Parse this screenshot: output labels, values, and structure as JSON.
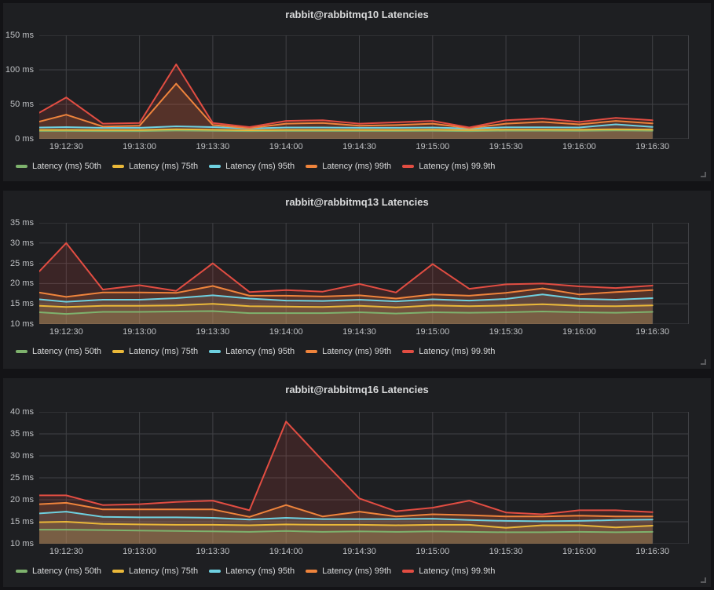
{
  "theme": {
    "page_bg": "#131316",
    "panel_bg": "#1e1f22",
    "grid_color": "#404145",
    "title_color": "#d8d9da",
    "tick_color": "#bfc1c4",
    "legend_color": "#d8d9da"
  },
  "series_palette": {
    "p50": "#7eb26d",
    "p75": "#eab839",
    "p95": "#6ed0e0",
    "p99": "#ef843c",
    "p99_9": "#e24d42"
  },
  "chart_data": [
    {
      "type": "line",
      "title": "rabbit@rabbitmq10 Latencies",
      "ylabel": "",
      "xlabel": "",
      "ylim": [
        0,
        150
      ],
      "grid": true,
      "legend_position": "bottom",
      "sample_interval": "15s",
      "note": "first point at left plot edge; labeled points every 15s from 19:12:30 to 19:16:30",
      "y_ticks": [
        {
          "value": 0,
          "label": "0 ms"
        },
        {
          "value": 50,
          "label": "50 ms"
        },
        {
          "value": 100,
          "label": "100 ms"
        },
        {
          "value": 150,
          "label": "150 ms"
        }
      ],
      "x_ticks": [
        "19:12:30",
        "19:13:00",
        "19:13:30",
        "19:14:00",
        "19:14:30",
        "19:15:00",
        "19:15:30",
        "19:16:00",
        "19:16:30"
      ],
      "series": [
        {
          "name": "Latency (ms) 50th",
          "color": "#7eb26d",
          "values": [
            11.5,
            11.5,
            11.3,
            11.3,
            12,
            11.7,
            11.2,
            11.5,
            11.5,
            11.5,
            11.5,
            11.7,
            11.2,
            11.8,
            11.8,
            11.6,
            12.2,
            11.8
          ]
        },
        {
          "name": "Latency (ms) 75th",
          "color": "#eab839",
          "values": [
            13,
            13,
            12.7,
            12.7,
            14,
            13.2,
            12.5,
            13,
            13,
            13,
            13,
            13.2,
            12.7,
            13.4,
            13.4,
            13.2,
            14,
            13.4
          ]
        },
        {
          "name": "Latency (ms) 95th",
          "color": "#6ed0e0",
          "values": [
            16.5,
            17,
            16,
            16,
            18.2,
            17,
            15,
            16.5,
            16.5,
            16,
            16,
            16.5,
            15,
            16.8,
            16.8,
            16.5,
            21,
            17.3
          ]
        },
        {
          "name": "Latency (ms) 99th",
          "color": "#ef843c",
          "values": [
            25,
            35,
            18,
            19,
            80,
            20,
            15.5,
            22,
            23,
            19,
            20,
            22,
            15.5,
            22,
            24.5,
            21,
            26,
            22.5
          ]
        },
        {
          "name": "Latency (ms) 99.9th",
          "color": "#e24d42",
          "values": [
            38,
            60,
            22,
            23,
            108,
            23,
            17,
            26,
            27,
            22,
            24,
            26,
            16.5,
            27,
            29.5,
            24.5,
            30.5,
            27
          ]
        }
      ]
    },
    {
      "type": "line",
      "title": "rabbit@rabbitmq13 Latencies",
      "ylabel": "",
      "xlabel": "",
      "ylim": [
        10,
        35
      ],
      "grid": true,
      "legend_position": "bottom",
      "sample_interval": "15s",
      "note": "first point at left plot edge; labeled points every 15s from 19:12:30 to 19:16:30",
      "y_ticks": [
        {
          "value": 10,
          "label": "10 ms"
        },
        {
          "value": 15,
          "label": "15 ms"
        },
        {
          "value": 20,
          "label": "20 ms"
        },
        {
          "value": 25,
          "label": "25 ms"
        },
        {
          "value": 30,
          "label": "30 ms"
        },
        {
          "value": 35,
          "label": "35 ms"
        }
      ],
      "x_ticks": [
        "19:12:30",
        "19:13:00",
        "19:13:30",
        "19:14:00",
        "19:14:30",
        "19:15:00",
        "19:15:30",
        "19:16:00",
        "19:16:30"
      ],
      "series": [
        {
          "name": "Latency (ms) 50th",
          "color": "#7eb26d",
          "values": [
            12.9,
            12.5,
            13,
            13,
            13.1,
            13.2,
            12.7,
            12.7,
            12.7,
            12.9,
            12.6,
            12.9,
            12.8,
            12.9,
            13.1,
            12.9,
            12.8,
            13
          ]
        },
        {
          "name": "Latency (ms) 75th",
          "color": "#eab839",
          "values": [
            14.5,
            14.2,
            14.5,
            14.5,
            14.6,
            15,
            14.4,
            14.3,
            14.2,
            14.5,
            14.1,
            14.6,
            14.4,
            14.6,
            14.9,
            14.5,
            14.4,
            14.6
          ]
        },
        {
          "name": "Latency (ms) 95th",
          "color": "#6ed0e0",
          "values": [
            16.1,
            15.5,
            16,
            16,
            16.4,
            17.1,
            16.3,
            15.8,
            15.7,
            16,
            15.6,
            16.1,
            15.8,
            16.2,
            17.3,
            16.2,
            16,
            16.4
          ]
        },
        {
          "name": "Latency (ms) 99th",
          "color": "#ef843c",
          "values": [
            17.8,
            16.7,
            17.8,
            17.8,
            17.7,
            19.4,
            17,
            17,
            16.8,
            17.1,
            16.3,
            17.3,
            17,
            17.7,
            18.8,
            17.3,
            17.9,
            18.4
          ]
        },
        {
          "name": "Latency (ms) 99.9th",
          "color": "#e24d42",
          "values": [
            23,
            30,
            18.5,
            19.6,
            18.2,
            25,
            17.9,
            18.4,
            18,
            19.9,
            17.8,
            24.8,
            18.7,
            19.8,
            20,
            19.3,
            18.9,
            19.5
          ]
        }
      ]
    },
    {
      "type": "line",
      "title": "rabbit@rabbitmq16 Latencies",
      "ylabel": "",
      "xlabel": "",
      "ylim": [
        10,
        40
      ],
      "grid": true,
      "legend_position": "bottom",
      "sample_interval": "15s",
      "note": "first point at left plot edge; labeled points every 15s from 19:12:30 to 19:16:30",
      "y_ticks": [
        {
          "value": 10,
          "label": "10 ms"
        },
        {
          "value": 15,
          "label": "15 ms"
        },
        {
          "value": 20,
          "label": "20 ms"
        },
        {
          "value": 25,
          "label": "25 ms"
        },
        {
          "value": 30,
          "label": "30 ms"
        },
        {
          "value": 35,
          "label": "35 ms"
        },
        {
          "value": 40,
          "label": "40 ms"
        }
      ],
      "x_ticks": [
        "19:12:30",
        "19:13:00",
        "19:13:30",
        "19:14:00",
        "19:14:30",
        "19:15:00",
        "19:15:30",
        "19:16:00",
        "19:16:30"
      ],
      "series": [
        {
          "name": "Latency (ms) 50th",
          "color": "#7eb26d",
          "values": [
            13.2,
            13.2,
            13.1,
            13,
            12.9,
            12.8,
            12.7,
            12.9,
            12.7,
            12.8,
            12.7,
            12.8,
            12.7,
            12.6,
            12.6,
            12.7,
            12.6,
            12.7
          ]
        },
        {
          "name": "Latency (ms) 75th",
          "color": "#eab839",
          "values": [
            14.9,
            15,
            14.5,
            14.4,
            14.3,
            14.3,
            14.2,
            14.4,
            14.3,
            14.3,
            14.2,
            14.3,
            14.3,
            13.6,
            14.2,
            14.2,
            13.7,
            14.1
          ]
        },
        {
          "name": "Latency (ms) 95th",
          "color": "#6ed0e0",
          "values": [
            16.9,
            17.3,
            16.1,
            16,
            16,
            15.9,
            15.5,
            15.9,
            15.6,
            15.6,
            15.6,
            15.7,
            15.4,
            15.2,
            15.1,
            15.2,
            15.4,
            15.5
          ]
        },
        {
          "name": "Latency (ms) 99th",
          "color": "#ef843c",
          "values": [
            19,
            19.3,
            17.8,
            17.8,
            17.8,
            17.8,
            16.1,
            18.8,
            16.2,
            17.3,
            16.2,
            16.7,
            16.5,
            16.2,
            16.2,
            16.4,
            16.2,
            16.2
          ]
        },
        {
          "name": "Latency (ms) 99.9th",
          "color": "#e24d42",
          "values": [
            21,
            21,
            18.8,
            19,
            19.5,
            19.8,
            17.6,
            37.8,
            28.9,
            20.3,
            17.4,
            18.2,
            19.8,
            17.1,
            16.7,
            17.6,
            17.6,
            17.2
          ]
        }
      ]
    }
  ]
}
